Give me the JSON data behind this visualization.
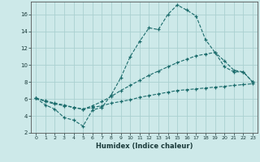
{
  "xlabel": "Humidex (Indice chaleur)",
  "background_color": "#cde9e9",
  "grid_color": "#aad0d0",
  "line_color": "#1a6b6b",
  "x": [
    0,
    1,
    2,
    3,
    4,
    5,
    6,
    7,
    8,
    9,
    10,
    11,
    12,
    13,
    14,
    15,
    16,
    17,
    18,
    19,
    20,
    21,
    22,
    23
  ],
  "curve_top": [
    6.1,
    5.3,
    4.8,
    3.8,
    3.5,
    2.8,
    4.7,
    5.0,
    6.5,
    8.5,
    11.0,
    12.8,
    14.4,
    14.2,
    16.0,
    17.1,
    16.5,
    15.8,
    13.0,
    11.5,
    9.8,
    9.2,
    9.2,
    8.0
  ],
  "curve_mid": [
    6.1,
    5.8,
    5.5,
    5.3,
    5.0,
    4.8,
    5.2,
    5.7,
    6.3,
    7.0,
    7.6,
    8.2,
    8.8,
    9.3,
    9.8,
    10.3,
    10.7,
    11.1,
    11.3,
    11.5,
    10.5,
    9.4,
    9.2,
    8.0
  ],
  "curve_bot": [
    6.1,
    5.7,
    5.4,
    5.2,
    5.0,
    4.8,
    5.0,
    5.2,
    5.5,
    5.7,
    5.9,
    6.2,
    6.4,
    6.6,
    6.8,
    7.0,
    7.1,
    7.2,
    7.3,
    7.4,
    7.5,
    7.6,
    7.7,
    7.8
  ],
  "yticks": [
    2,
    4,
    6,
    8,
    10,
    12,
    14,
    16
  ],
  "xticks": [
    0,
    1,
    2,
    3,
    4,
    5,
    6,
    7,
    8,
    9,
    10,
    11,
    12,
    13,
    14,
    15,
    16,
    17,
    18,
    19,
    20,
    21,
    22,
    23
  ],
  "xlim": [
    -0.5,
    23.5
  ],
  "ylim": [
    2,
    17.5
  ]
}
